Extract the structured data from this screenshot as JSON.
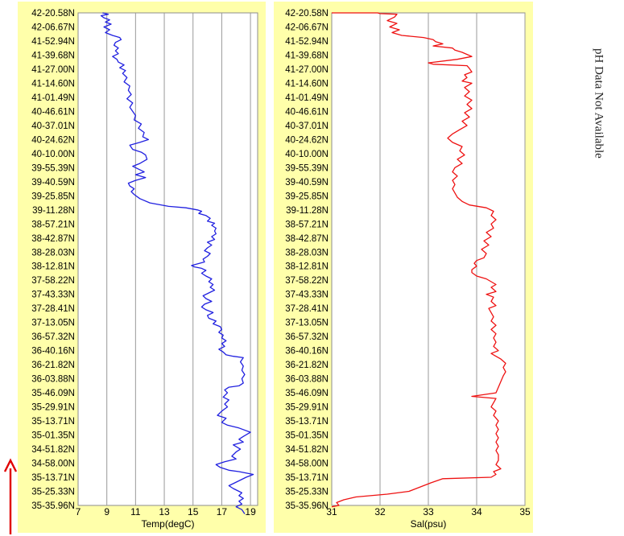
{
  "side_note": "pH Data Not Available",
  "direction_arrow": {
    "icon": "arrow-up-icon",
    "color": "#e00000"
  },
  "latitude_labels": [
    "42-20.58N",
    "42-06.67N",
    "41-52.94N",
    "41-39.68N",
    "41-27.00N",
    "41-14.60N",
    "41-01.49N",
    "40-46.61N",
    "40-37.01N",
    "40-24.62N",
    "40-10.00N",
    "39-55.39N",
    "39-40.59N",
    "39-25.85N",
    "39-11.28N",
    "38-57.21N",
    "38-42.87N",
    "38-28.03N",
    "38-12.81N",
    "37-58.22N",
    "37-43.33N",
    "37-28.41N",
    "37-13.05N",
    "36-57.32N",
    "36-40.16N",
    "36-21.82N",
    "36-03.88N",
    "35-46.09N",
    "35-29.91N",
    "35-13.71N",
    "35-01.35N",
    "34-51.82N",
    "34-58.00N",
    "35-13.71N",
    "35-25.33N",
    "35-35.96N"
  ],
  "chart_data": [
    {
      "type": "line",
      "xlabel": "Temp(degC)",
      "xlim": [
        7,
        19.5
      ],
      "xticks": [
        7,
        9,
        11,
        13,
        15,
        17,
        19
      ],
      "background": "#ffffaa",
      "color": "#2020e0",
      "points": [
        [
          8.7,
          0.0
        ],
        [
          9.1,
          0.1
        ],
        [
          8.6,
          0.2
        ],
        [
          8.8,
          0.35
        ],
        [
          9.2,
          0.5
        ],
        [
          8.9,
          0.65
        ],
        [
          9.3,
          0.8
        ],
        [
          8.8,
          1.0
        ],
        [
          9.2,
          1.2
        ],
        [
          8.9,
          1.4
        ],
        [
          9.4,
          1.6
        ],
        [
          9.9,
          1.75
        ],
        [
          10.0,
          1.9
        ],
        [
          9.6,
          2.1
        ],
        [
          9.5,
          2.3
        ],
        [
          9.8,
          2.5
        ],
        [
          9.6,
          2.7
        ],
        [
          9.8,
          2.9
        ],
        [
          9.4,
          3.1
        ],
        [
          9.7,
          3.3
        ],
        [
          9.8,
          3.5
        ],
        [
          10.2,
          3.7
        ],
        [
          9.9,
          3.9
        ],
        [
          10.3,
          4.1
        ],
        [
          10.1,
          4.3
        ],
        [
          10.4,
          4.6
        ],
        [
          10.2,
          4.9
        ],
        [
          10.6,
          5.2
        ],
        [
          10.5,
          5.5
        ],
        [
          10.7,
          5.8
        ],
        [
          10.4,
          6.1
        ],
        [
          10.8,
          6.4
        ],
        [
          10.6,
          6.7
        ],
        [
          10.8,
          7.0
        ],
        [
          11.0,
          7.3
        ],
        [
          10.9,
          7.6
        ],
        [
          11.4,
          7.9
        ],
        [
          11.2,
          8.2
        ],
        [
          11.6,
          8.5
        ],
        [
          11.5,
          8.8
        ],
        [
          11.9,
          9.0
        ],
        [
          11.3,
          9.2
        ],
        [
          10.6,
          9.4
        ],
        [
          10.8,
          9.7
        ],
        [
          11.4,
          9.9
        ],
        [
          11.7,
          10.1
        ],
        [
          11.8,
          10.4
        ],
        [
          11.3,
          10.7
        ],
        [
          10.8,
          10.9
        ],
        [
          11.2,
          11.1
        ],
        [
          11.6,
          11.3
        ],
        [
          11.0,
          11.5
        ],
        [
          11.7,
          11.7
        ],
        [
          11.0,
          11.9
        ],
        [
          10.5,
          12.1
        ],
        [
          10.6,
          12.3
        ],
        [
          10.9,
          12.5
        ],
        [
          10.7,
          12.7
        ],
        [
          10.9,
          12.9
        ],
        [
          11.3,
          13.2
        ],
        [
          12.0,
          13.5
        ],
        [
          13.3,
          13.75
        ],
        [
          14.5,
          13.85
        ],
        [
          15.3,
          14.0
        ],
        [
          15.6,
          14.1
        ],
        [
          15.4,
          14.25
        ],
        [
          15.9,
          14.4
        ],
        [
          16.2,
          14.6
        ],
        [
          16.0,
          14.8
        ],
        [
          16.5,
          14.95
        ],
        [
          16.3,
          15.1
        ],
        [
          16.6,
          15.3
        ],
        [
          16.5,
          15.5
        ],
        [
          16.6,
          15.7
        ],
        [
          16.3,
          15.9
        ],
        [
          16.5,
          16.1
        ],
        [
          16.0,
          16.3
        ],
        [
          16.3,
          16.5
        ],
        [
          16.0,
          16.7
        ],
        [
          15.8,
          16.9
        ],
        [
          16.2,
          17.1
        ],
        [
          16.0,
          17.3
        ],
        [
          15.7,
          17.5
        ],
        [
          15.8,
          17.7
        ],
        [
          14.9,
          17.95
        ],
        [
          15.1,
          18.05
        ],
        [
          15.6,
          18.15
        ],
        [
          15.9,
          18.3
        ],
        [
          15.6,
          18.5
        ],
        [
          15.9,
          18.7
        ],
        [
          16.3,
          18.9
        ],
        [
          16.1,
          19.1
        ],
        [
          16.4,
          19.3
        ],
        [
          16.2,
          19.5
        ],
        [
          16.5,
          19.7
        ],
        [
          16.1,
          19.9
        ],
        [
          15.7,
          20.1
        ],
        [
          15.9,
          20.3
        ],
        [
          16.3,
          20.5
        ],
        [
          15.8,
          20.7
        ],
        [
          15.6,
          20.9
        ],
        [
          15.9,
          21.1
        ],
        [
          16.4,
          21.3
        ],
        [
          16.0,
          21.5
        ],
        [
          16.1,
          21.7
        ],
        [
          16.6,
          21.9
        ],
        [
          16.4,
          22.1
        ],
        [
          16.9,
          22.3
        ],
        [
          17.0,
          22.5
        ],
        [
          16.8,
          22.7
        ],
        [
          17.1,
          22.9
        ],
        [
          17.0,
          23.1
        ],
        [
          17.3,
          23.3
        ],
        [
          17.0,
          23.5
        ],
        [
          17.2,
          23.7
        ],
        [
          16.8,
          23.9
        ],
        [
          17.1,
          24.1
        ],
        [
          17.3,
          24.3
        ],
        [
          17.8,
          24.4
        ],
        [
          18.5,
          24.5
        ],
        [
          18.3,
          24.8
        ],
        [
          18.5,
          25.1
        ],
        [
          18.4,
          25.4
        ],
        [
          18.6,
          25.7
        ],
        [
          18.4,
          26.0
        ],
        [
          18.5,
          26.3
        ],
        [
          18.2,
          26.5
        ],
        [
          17.5,
          26.6
        ],
        [
          17.2,
          26.8
        ],
        [
          17.4,
          27.0
        ],
        [
          17.1,
          27.3
        ],
        [
          17.5,
          27.5
        ],
        [
          17.2,
          27.8
        ],
        [
          17.4,
          28.0
        ],
        [
          17.0,
          28.3
        ],
        [
          16.7,
          28.6
        ],
        [
          17.3,
          28.8
        ],
        [
          17.0,
          29.1
        ],
        [
          17.4,
          29.3
        ],
        [
          18.2,
          29.5
        ],
        [
          19.0,
          29.8
        ],
        [
          18.5,
          30.1
        ],
        [
          18.2,
          30.3
        ],
        [
          18.5,
          30.5
        ],
        [
          17.8,
          30.7
        ],
        [
          18.3,
          31.0
        ],
        [
          18.0,
          31.2
        ],
        [
          17.7,
          31.5
        ],
        [
          18.0,
          31.7
        ],
        [
          17.2,
          31.9
        ],
        [
          16.6,
          32.1
        ],
        [
          16.9,
          32.3
        ],
        [
          17.5,
          32.5
        ],
        [
          18.2,
          32.6
        ],
        [
          19.2,
          32.8
        ],
        [
          18.7,
          33.0
        ],
        [
          18.3,
          33.2
        ],
        [
          17.9,
          33.4
        ],
        [
          17.5,
          33.6
        ],
        [
          17.8,
          33.8
        ],
        [
          18.2,
          34.0
        ],
        [
          18.4,
          34.1
        ],
        [
          18.2,
          34.3
        ],
        [
          18.5,
          34.5
        ],
        [
          18.2,
          34.7
        ],
        [
          18.4,
          34.9
        ],
        [
          18.0,
          35.1
        ],
        [
          18.4,
          35.3
        ],
        [
          18.6,
          35.6
        ]
      ]
    },
    {
      "type": "line",
      "xlabel": "Sal(psu)",
      "xlim": [
        31,
        35
      ],
      "xticks": [
        31,
        32,
        33,
        34,
        35
      ],
      "background": "#ffffaa",
      "color": "#ee1111",
      "points": [
        [
          31.0,
          0.0
        ],
        [
          31.95,
          0.0
        ],
        [
          32.0,
          0.05
        ],
        [
          32.35,
          0.1
        ],
        [
          32.3,
          0.3
        ],
        [
          32.15,
          0.55
        ],
        [
          32.35,
          0.75
        ],
        [
          32.2,
          1.0
        ],
        [
          32.4,
          1.2
        ],
        [
          32.25,
          1.4
        ],
        [
          32.45,
          1.6
        ],
        [
          32.9,
          1.75
        ],
        [
          33.1,
          1.9
        ],
        [
          33.15,
          2.05
        ],
        [
          33.3,
          2.2
        ],
        [
          33.1,
          2.35
        ],
        [
          33.5,
          2.5
        ],
        [
          33.55,
          2.65
        ],
        [
          33.7,
          2.8
        ],
        [
          33.8,
          2.95
        ],
        [
          33.9,
          3.1
        ],
        [
          33.6,
          3.3
        ],
        [
          33.0,
          3.55
        ],
        [
          33.1,
          3.65
        ],
        [
          33.8,
          3.75
        ],
        [
          33.85,
          3.95
        ],
        [
          33.9,
          4.2
        ],
        [
          33.75,
          4.4
        ],
        [
          33.8,
          4.6
        ],
        [
          33.7,
          4.85
        ],
        [
          33.9,
          5.0
        ],
        [
          33.75,
          5.3
        ],
        [
          33.85,
          5.6
        ],
        [
          33.75,
          5.9
        ],
        [
          33.9,
          6.2
        ],
        [
          33.8,
          6.5
        ],
        [
          33.9,
          6.8
        ],
        [
          33.75,
          7.1
        ],
        [
          33.85,
          7.4
        ],
        [
          33.7,
          7.7
        ],
        [
          33.8,
          8.0
        ],
        [
          33.65,
          8.3
        ],
        [
          33.5,
          8.6
        ],
        [
          33.4,
          8.9
        ],
        [
          33.5,
          9.2
        ],
        [
          33.7,
          9.5
        ],
        [
          33.65,
          9.8
        ],
        [
          33.75,
          10.1
        ],
        [
          33.6,
          10.4
        ],
        [
          33.7,
          10.7
        ],
        [
          33.55,
          11.0
        ],
        [
          33.5,
          11.3
        ],
        [
          33.6,
          11.6
        ],
        [
          33.5,
          11.9
        ],
        [
          33.55,
          12.2
        ],
        [
          33.5,
          12.5
        ],
        [
          33.55,
          12.8
        ],
        [
          33.6,
          13.1
        ],
        [
          33.7,
          13.4
        ],
        [
          33.85,
          13.65
        ],
        [
          34.2,
          13.85
        ],
        [
          34.35,
          14.1
        ],
        [
          34.3,
          14.4
        ],
        [
          34.4,
          14.7
        ],
        [
          34.3,
          15.0
        ],
        [
          34.35,
          15.3
        ],
        [
          34.2,
          15.6
        ],
        [
          34.3,
          15.9
        ],
        [
          34.15,
          16.2
        ],
        [
          34.25,
          16.5
        ],
        [
          34.1,
          16.8
        ],
        [
          34.2,
          17.1
        ],
        [
          34.15,
          17.4
        ],
        [
          34.0,
          17.6
        ],
        [
          33.95,
          17.8
        ],
        [
          34.0,
          18.0
        ],
        [
          33.9,
          18.25
        ],
        [
          33.9,
          18.45
        ],
        [
          34.0,
          18.7
        ],
        [
          34.2,
          18.9
        ],
        [
          34.3,
          19.1
        ],
        [
          34.4,
          19.3
        ],
        [
          34.3,
          19.5
        ],
        [
          34.4,
          19.8
        ],
        [
          34.2,
          20.0
        ],
        [
          34.35,
          20.2
        ],
        [
          34.3,
          20.5
        ],
        [
          34.4,
          20.8
        ],
        [
          34.25,
          21.0
        ],
        [
          34.3,
          21.3
        ],
        [
          34.35,
          21.6
        ],
        [
          34.3,
          21.9
        ],
        [
          34.4,
          22.2
        ],
        [
          34.3,
          22.5
        ],
        [
          34.4,
          22.8
        ],
        [
          34.35,
          23.1
        ],
        [
          34.4,
          23.4
        ],
        [
          34.35,
          23.7
        ],
        [
          34.45,
          24.0
        ],
        [
          34.3,
          24.2
        ],
        [
          34.4,
          24.4
        ],
        [
          34.5,
          24.6
        ],
        [
          34.6,
          24.9
        ],
        [
          34.55,
          25.2
        ],
        [
          34.6,
          25.5
        ],
        [
          34.55,
          25.8
        ],
        [
          34.5,
          26.2
        ],
        [
          34.45,
          26.6
        ],
        [
          34.4,
          27.0
        ],
        [
          33.9,
          27.25
        ],
        [
          34.4,
          27.4
        ],
        [
          34.35,
          27.7
        ],
        [
          34.3,
          28.0
        ],
        [
          34.4,
          28.3
        ],
        [
          34.35,
          28.6
        ],
        [
          34.45,
          29.0
        ],
        [
          34.4,
          29.3
        ],
        [
          34.45,
          29.6
        ],
        [
          34.4,
          29.9
        ],
        [
          34.45,
          30.2
        ],
        [
          34.4,
          30.5
        ],
        [
          34.45,
          30.8
        ],
        [
          34.4,
          31.1
        ],
        [
          34.45,
          31.4
        ],
        [
          34.45,
          31.8
        ],
        [
          34.4,
          32.1
        ],
        [
          34.5,
          32.4
        ],
        [
          34.35,
          32.6
        ],
        [
          34.4,
          32.8
        ],
        [
          34.3,
          33.0
        ],
        [
          33.3,
          33.1
        ],
        [
          33.05,
          33.4
        ],
        [
          32.9,
          33.6
        ],
        [
          32.75,
          33.8
        ],
        [
          32.6,
          34.0
        ],
        [
          32.15,
          34.2
        ],
        [
          31.5,
          34.4
        ],
        [
          31.25,
          34.6
        ],
        [
          31.1,
          34.8
        ],
        [
          31.15,
          35.0
        ],
        [
          31.0,
          35.1
        ]
      ]
    }
  ]
}
